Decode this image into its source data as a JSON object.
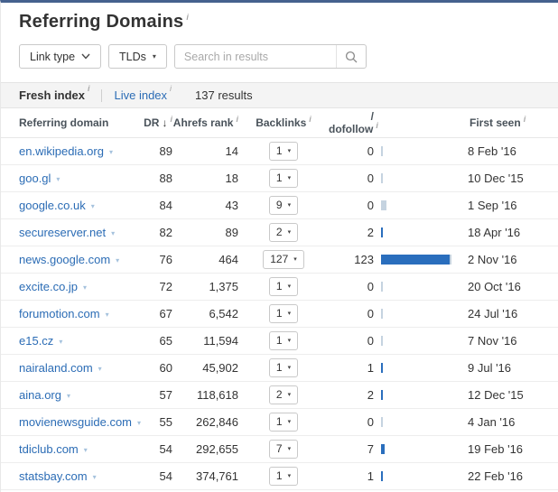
{
  "title": {
    "text": "Referring Domains"
  },
  "glyphs": {
    "info": "i",
    "caret_down": "▾",
    "sort_desc": "↓"
  },
  "filters": {
    "link_type": "Link type",
    "tlds": "TLDs",
    "search_placeholder": "Search in results"
  },
  "tabs": {
    "fresh": "Fresh index",
    "live": "Live index",
    "results_count": "137 results"
  },
  "columns": {
    "domain": "Referring domain",
    "dr": "DR",
    "rank": "Ahrefs rank",
    "backlinks": "Backlinks",
    "dofollow": "/ dofollow",
    "first_seen": "First seen"
  },
  "colors": {
    "top_border": "#45618e",
    "link_blue": "#2b6cb5",
    "bar_dofollow": "#2a6ebd",
    "bar_nofollow": "#c5d3e0"
  },
  "rows": [
    {
      "domain": "en.wikipedia.org",
      "dr": "89",
      "rank": "14",
      "backlinks": 1,
      "dofollow": 0,
      "first_seen": "8 Feb '16"
    },
    {
      "domain": "goo.gl",
      "dr": "88",
      "rank": "18",
      "backlinks": 1,
      "dofollow": 0,
      "first_seen": "10 Dec '15"
    },
    {
      "domain": "google.co.uk",
      "dr": "84",
      "rank": "43",
      "backlinks": 9,
      "dofollow": 0,
      "first_seen": "1 Sep '16"
    },
    {
      "domain": "secureserver.net",
      "dr": "82",
      "rank": "89",
      "backlinks": 2,
      "dofollow": 2,
      "first_seen": "18 Apr '16"
    },
    {
      "domain": "news.google.com",
      "dr": "76",
      "rank": "464",
      "backlinks": 127,
      "dofollow": 123,
      "first_seen": "2 Nov '16"
    },
    {
      "domain": "excite.co.jp",
      "dr": "72",
      "rank": "1,375",
      "backlinks": 1,
      "dofollow": 0,
      "first_seen": "20 Oct '16"
    },
    {
      "domain": "forumotion.com",
      "dr": "67",
      "rank": "6,542",
      "backlinks": 1,
      "dofollow": 0,
      "first_seen": "24 Jul '16"
    },
    {
      "domain": "e15.cz",
      "dr": "65",
      "rank": "11,594",
      "backlinks": 1,
      "dofollow": 0,
      "first_seen": "7 Nov '16"
    },
    {
      "domain": "nairaland.com",
      "dr": "60",
      "rank": "45,902",
      "backlinks": 1,
      "dofollow": 1,
      "first_seen": "9 Jul '16"
    },
    {
      "domain": "aina.org",
      "dr": "57",
      "rank": "118,618",
      "backlinks": 2,
      "dofollow": 2,
      "first_seen": "12 Dec '15"
    },
    {
      "domain": "movienewsguide.com",
      "dr": "55",
      "rank": "262,846",
      "backlinks": 1,
      "dofollow": 0,
      "first_seen": "4 Jan '16"
    },
    {
      "domain": "tdiclub.com",
      "dr": "54",
      "rank": "292,655",
      "backlinks": 7,
      "dofollow": 7,
      "first_seen": "19 Feb '16"
    },
    {
      "domain": "statsbay.com",
      "dr": "54",
      "rank": "374,761",
      "backlinks": 1,
      "dofollow": 1,
      "first_seen": "22 Feb '16"
    }
  ]
}
